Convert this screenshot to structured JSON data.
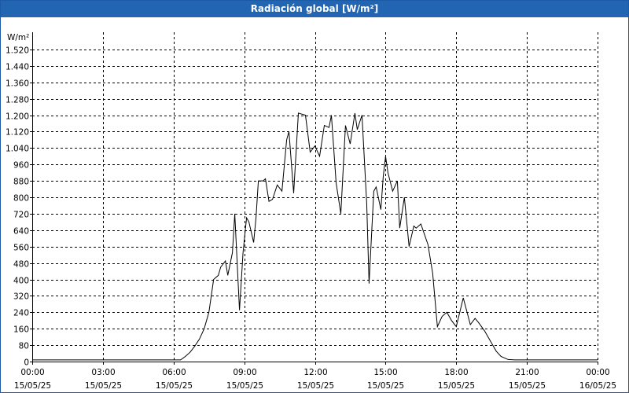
{
  "window": {
    "title": "Radiación global [W/m²]"
  },
  "chart_data": {
    "type": "line",
    "title": "Radiación global [W/m²]",
    "ylabel": "W/m²",
    "xlabel": "",
    "ylim": [
      0,
      1600
    ],
    "yticks": [
      0,
      80,
      160,
      240,
      320,
      400,
      480,
      560,
      640,
      720,
      800,
      880,
      960,
      1040,
      1120,
      1200,
      1280,
      1360,
      1440,
      1520
    ],
    "ytick_labels": [
      "0",
      "80",
      "160",
      "240",
      "320",
      "400",
      "480",
      "560",
      "640",
      "720",
      "800",
      "880",
      "960",
      "1.040",
      "1.120",
      "1.200",
      "1.280",
      "1.360",
      "1.440",
      "1.520"
    ],
    "xlim": [
      0,
      24
    ],
    "xticks": [
      0,
      3,
      6,
      9,
      12,
      15,
      18,
      21,
      24
    ],
    "xtick_times": [
      "00:00",
      "03:00",
      "06:00",
      "09:00",
      "12:00",
      "15:00",
      "18:00",
      "21:00",
      "00:00"
    ],
    "xtick_dates": [
      "15/05/25",
      "15/05/25",
      "15/05/25",
      "15/05/25",
      "15/05/25",
      "15/05/25",
      "15/05/25",
      "15/05/25",
      "16/05/25"
    ],
    "grid": true,
    "series": [
      {
        "name": "",
        "x": [
          0,
          6.3,
          6.5,
          6.7,
          6.9,
          7.1,
          7.3,
          7.5,
          7.7,
          7.9,
          8.0,
          8.2,
          8.3,
          8.5,
          8.6,
          8.8,
          8.95,
          9.1,
          9.2,
          9.4,
          9.5,
          9.6,
          9.8,
          9.9,
          10.05,
          10.2,
          10.4,
          10.6,
          10.8,
          10.9,
          11.1,
          11.3,
          11.6,
          11.8,
          12.0,
          12.2,
          12.4,
          12.6,
          12.7,
          12.9,
          13.1,
          13.3,
          13.5,
          13.7,
          13.8,
          14.0,
          14.2,
          14.3,
          14.5,
          14.6,
          14.8,
          14.9,
          15.0,
          15.1,
          15.3,
          15.5,
          15.6,
          15.8,
          16.0,
          16.2,
          16.3,
          16.5,
          16.8,
          17.0,
          17.2,
          17.4,
          17.6,
          17.8,
          18.0,
          18.3,
          18.6,
          18.8,
          18.95,
          19.2,
          19.5,
          19.7,
          19.9,
          20.2,
          20.5,
          20.8,
          24.0
        ],
        "y": [
          8,
          8,
          25,
          45,
          75,
          110,
          160,
          240,
          400,
          420,
          460,
          490,
          420,
          530,
          720,
          250,
          530,
          700,
          680,
          580,
          700,
          880,
          880,
          890,
          780,
          790,
          860,
          830,
          1080,
          1120,
          820,
          1210,
          1200,
          1020,
          1050,
          1000,
          1150,
          1140,
          1200,
          870,
          720,
          1150,
          1060,
          1210,
          1130,
          1200,
          770,
          380,
          830,
          850,
          740,
          900,
          1000,
          920,
          830,
          880,
          650,
          800,
          560,
          660,
          650,
          670,
          570,
          430,
          170,
          220,
          240,
          200,
          170,
          310,
          180,
          210,
          190,
          150,
          90,
          50,
          25,
          10,
          8,
          8,
          8
        ]
      }
    ]
  }
}
